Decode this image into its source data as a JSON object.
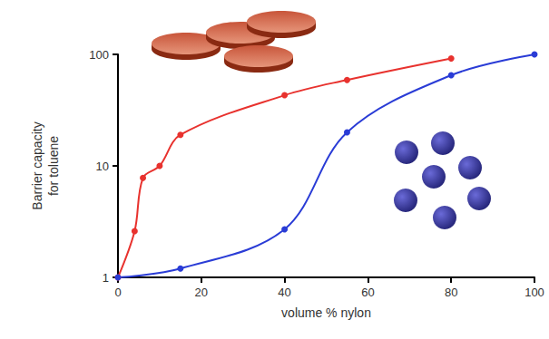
{
  "chart_data": {
    "type": "line",
    "x_label": "volume % nylon",
    "y_label": "Barrier capacity for toluene",
    "log": "y",
    "grid": false,
    "marker": "circle",
    "xlim": [
      0,
      100
    ],
    "xticks": [
      0,
      20,
      40,
      60,
      80,
      100
    ],
    "ylim": [
      1,
      100
    ],
    "yticks": [
      1,
      10,
      100
    ],
    "series": [
      {
        "color": "#e8322e",
        "x": [
          0,
          4,
          6,
          10,
          15,
          40,
          55,
          80
        ],
        "values": [
          1,
          2.6,
          7.8,
          10,
          19,
          43,
          59,
          92
        ]
      },
      {
        "color": "#2a3cd6",
        "x": [
          0,
          15,
          40,
          55,
          80,
          100
        ],
        "values": [
          1,
          1.2,
          2.7,
          20,
          65,
          100
        ]
      }
    ]
  }
}
